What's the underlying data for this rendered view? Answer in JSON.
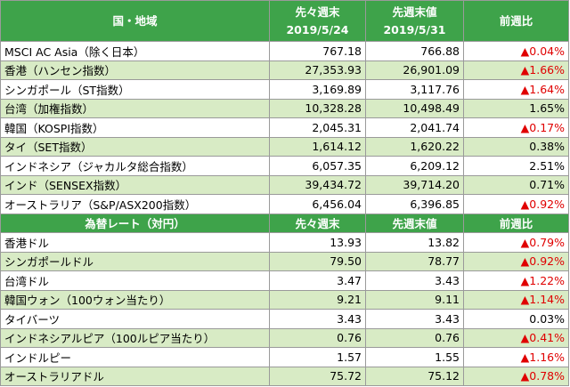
{
  "table1": {
    "header": [
      "国・地域",
      "先々週末",
      "2019/5/24",
      "先週末値",
      "2019/5/31",
      "前週比"
    ],
    "rows": [
      [
        "MSCI AC Asia（除く日本）",
        "767.18",
        "766.88",
        "▲0.04%"
      ],
      [
        "香港（ハンセン指数）",
        "27,353.93",
        "26,901.09",
        "▲1.66%"
      ],
      [
        "シンガポール（ST指数）",
        "3,169.89",
        "3,117.76",
        "▲1.64%"
      ],
      [
        "台湾（加権指数）",
        "10,328.28",
        "10,498.49",
        "1.65%"
      ],
      [
        "韓国（KOSPI指数）",
        "2,045.31",
        "2,041.74",
        "▲0.17%"
      ],
      [
        "タイ（SET指数）",
        "1,614.12",
        "1,620.22",
        "0.38%"
      ],
      [
        "インドネシア（ジャカルタ総合指数）",
        "6,057.35",
        "6,209.12",
        "2.51%"
      ],
      [
        "インド（SENSEX指数）",
        "39,434.72",
        "39,714.20",
        "0.71%"
      ],
      [
        "オーストラリア（S&P/ASX200指数）",
        "6,456.04",
        "6,396.85",
        "▲0.92%"
      ]
    ]
  },
  "table2": {
    "header": [
      "為替レート（対円）",
      "先々週末",
      "先週末値",
      "前週比"
    ],
    "rows": [
      [
        "香港ドル",
        "13.93",
        "13.82",
        "▲0.79%"
      ],
      [
        "シンガポールドル",
        "79.50",
        "78.77",
        "▲0.92%"
      ],
      [
        "台湾ドル",
        "3.47",
        "3.43",
        "▲1.22%"
      ],
      [
        "韓国ウォン（100ウォン当たり）",
        "9.21",
        "9.11",
        "▲1.14%"
      ],
      [
        "タイバーツ",
        "3.43",
        "3.43",
        "0.03%"
      ],
      [
        "インドネシアルピア（100ルピア当たり）",
        "0.76",
        "0.76",
        "▲0.41%"
      ],
      [
        "インドルピー",
        "1.57",
        "1.55",
        "▲1.16%"
      ],
      [
        "オーストラリアドル",
        "75.72",
        "75.12",
        "▲0.78%"
      ]
    ]
  }
}
